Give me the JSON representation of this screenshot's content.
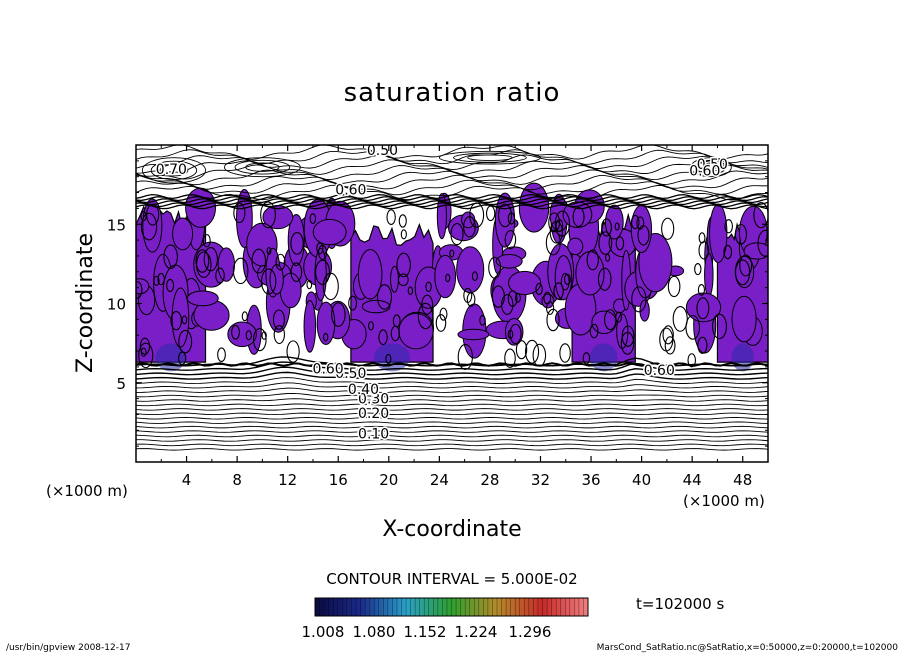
{
  "chart_data": {
    "type": "contour",
    "title": "saturation ratio",
    "xlabel": "X-coordinate",
    "ylabel": "Z-coordinate",
    "x_unit": "(×1000 m)",
    "y_unit": "(×1000 m)",
    "xlim": [
      0,
      50
    ],
    "ylim": [
      0,
      20
    ],
    "x_ticks": [
      4,
      8,
      12,
      16,
      20,
      24,
      28,
      32,
      36,
      40,
      44,
      48
    ],
    "y_ticks": [
      5,
      10,
      15
    ],
    "contour_interval_text": "CONTOUR INTERVAL = 5.000E-02",
    "time_text": "t=102000 s",
    "colorbar": {
      "tick_labels": [
        "1.008",
        "1.080",
        "1.152",
        "1.224",
        "1.296"
      ],
      "colors": [
        "#0a0a40",
        "#1b2a8a",
        "#2aa0c8",
        "#2ea02e",
        "#b48a2a",
        "#c82a2a",
        "#f08080"
      ]
    },
    "fill_color": "#7a1fc8",
    "contour_labels": [
      {
        "text": "0.10",
        "x": 18.8,
        "z": 1.8
      },
      {
        "text": "0.20",
        "x": 18.8,
        "z": 3.1
      },
      {
        "text": "0.30",
        "x": 18.8,
        "z": 4.0
      },
      {
        "text": "0.40",
        "x": 18.0,
        "z": 4.6
      },
      {
        "text": "0.50",
        "x": 17.0,
        "z": 5.6
      },
      {
        "text": "0.60",
        "x": 15.2,
        "z": 5.9
      },
      {
        "text": "0.60",
        "x": 41.4,
        "z": 5.8
      },
      {
        "text": "0.70",
        "x": 2.8,
        "z": 18.5
      },
      {
        "text": "0.60",
        "x": 17.0,
        "z": 17.2
      },
      {
        "text": "0.50",
        "x": 19.5,
        "z": 19.7
      },
      {
        "text": "0.50",
        "x": 45.6,
        "z": 18.8
      },
      {
        "text": "0.60",
        "x": 45.0,
        "z": 18.4
      }
    ],
    "supersaturated_regions_x": [
      [
        0,
        5.5
      ],
      [
        17,
        23.5
      ],
      [
        34.5,
        39.5
      ],
      [
        46,
        50
      ]
    ],
    "footer_left": "/usr/bin/gpview   2008-12-17",
    "footer_right": "MarsCond_SatRatio.nc@SatRatio,x=0:50000,z=0:20000,t=102000"
  }
}
